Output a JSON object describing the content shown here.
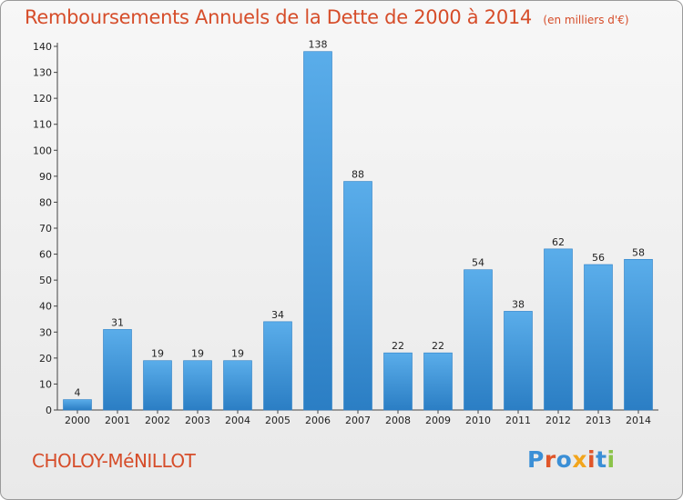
{
  "chart_data": {
    "type": "bar",
    "title": "Remboursements Annuels de la Dette de 2000 à 2014",
    "subtitle": "(en milliers d'€)",
    "categories": [
      "2000",
      "2001",
      "2002",
      "2003",
      "2004",
      "2005",
      "2006",
      "2007",
      "2008",
      "2009",
      "2010",
      "2011",
      "2012",
      "2013",
      "2014"
    ],
    "values": [
      4,
      31,
      19,
      19,
      19,
      34,
      138,
      88,
      22,
      22,
      54,
      38,
      62,
      56,
      58
    ],
    "ylim": [
      0,
      140
    ],
    "yticks": [
      0,
      10,
      20,
      30,
      40,
      50,
      60,
      70,
      80,
      90,
      100,
      110,
      120,
      130,
      140
    ],
    "grid": false,
    "bar_color": "#4a9fe0",
    "bar_color_dark": "#2a7fc6",
    "data_labels": true
  },
  "footer": {
    "commune": "CHOLOY-MéNILLOT",
    "logo_text": "Proxiti"
  },
  "colors": {
    "title": "#d64d2a",
    "logo_letters": [
      "#3b8fd6",
      "#e0562a",
      "#3b8fd6",
      "#f2a51c",
      "#e0562a",
      "#3b8fd6",
      "#8bc34a"
    ]
  }
}
